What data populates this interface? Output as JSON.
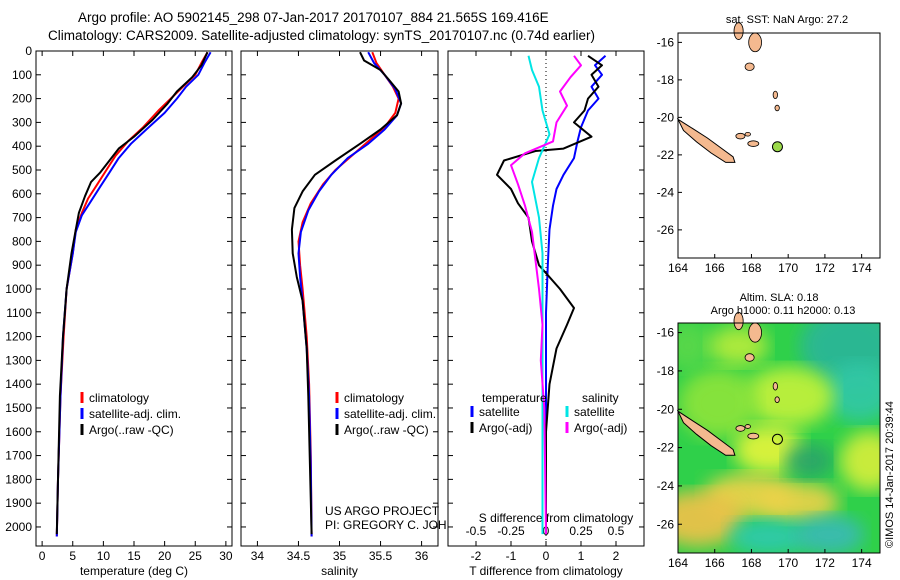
{
  "header": {
    "line1": "Argo profile: AO 5902145_298 07-Jan-2017 20170107_884 21.565S 169.416E",
    "line2": "Climatology: CARS2009. Satellite-adjusted climatology: synTS_20170107.nc (0.74d earlier)"
  },
  "credit": "©IMOS 14-Jan-2017 20:39:44",
  "colors": {
    "climatology": "#ff0000",
    "satellite": "#0000ff",
    "argo": "#000000",
    "sal_satellite": "#00e5e5",
    "sal_argo": "#ff00ff",
    "land": "#f4b98f"
  },
  "chart_data": [
    {
      "id": "temperature",
      "type": "line",
      "xlabel": "temperature (deg C)",
      "ylabel": "",
      "xlim": [
        -1,
        31
      ],
      "ylim": [
        2080,
        0
      ],
      "xticks": [
        0,
        5,
        10,
        15,
        20,
        25,
        30
      ],
      "yticks": [
        0,
        100,
        200,
        300,
        400,
        500,
        600,
        700,
        800,
        900,
        1000,
        1100,
        1200,
        1300,
        1400,
        1500,
        1600,
        1700,
        1800,
        1900,
        2000
      ],
      "legend": [
        "climatology",
        "satellite-adj. clim.",
        "Argo(..raw -QC)"
      ],
      "series": [
        {
          "name": "climatology",
          "color": "#ff0000",
          "points": [
            [
              27,
              5
            ],
            [
              26,
              50
            ],
            [
              25,
              100
            ],
            [
              23,
              150
            ],
            [
              21,
              200
            ],
            [
              19,
              250
            ],
            [
              16.5,
              320
            ],
            [
              14,
              380
            ],
            [
              12,
              440
            ],
            [
              10.5,
              500
            ],
            [
              9,
              560
            ],
            [
              7.5,
              620
            ],
            [
              6.5,
              680
            ],
            [
              5.5,
              750
            ],
            [
              5,
              850
            ],
            [
              4,
              1000
            ],
            [
              3.5,
              1200
            ],
            [
              3,
              1450
            ],
            [
              2.6,
              1800
            ],
            [
              2.4,
              2040
            ]
          ]
        },
        {
          "name": "satellite-adj. clim.",
          "color": "#0000ff",
          "points": [
            [
              27.5,
              5
            ],
            [
              26.5,
              50
            ],
            [
              25.5,
              100
            ],
            [
              23.5,
              150
            ],
            [
              22,
              200
            ],
            [
              20,
              260
            ],
            [
              17,
              330
            ],
            [
              14.5,
              390
            ],
            [
              12.5,
              450
            ],
            [
              11,
              510
            ],
            [
              9.5,
              570
            ],
            [
              8,
              630
            ],
            [
              6.5,
              690
            ],
            [
              5.5,
              760
            ],
            [
              5,
              850
            ],
            [
              4,
              1000
            ],
            [
              3.4,
              1200
            ],
            [
              3,
              1450
            ],
            [
              2.6,
              1800
            ],
            [
              2.4,
              2040
            ]
          ]
        },
        {
          "name": "Argo(..raw -QC)",
          "color": "#000000",
          "points": [
            [
              27,
              5
            ],
            [
              26,
              60
            ],
            [
              24.5,
              110
            ],
            [
              22,
              170
            ],
            [
              20.5,
              220
            ],
            [
              18,
              290
            ],
            [
              15,
              360
            ],
            [
              12.5,
              410
            ],
            [
              11,
              460
            ],
            [
              9.5,
              510
            ],
            [
              8,
              550
            ],
            [
              7,
              610
            ],
            [
              6,
              680
            ],
            [
              5.5,
              750
            ],
            [
              4.8,
              850
            ],
            [
              4,
              1000
            ],
            [
              3.4,
              1200
            ],
            [
              2.9,
              1450
            ],
            [
              2.6,
              1800
            ],
            [
              2.4,
              2030
            ]
          ]
        }
      ]
    },
    {
      "id": "salinity",
      "type": "line",
      "xlabel": "salinity",
      "ylabel": "",
      "xlim": [
        33.8,
        36.2
      ],
      "ylim": [
        2080,
        0
      ],
      "xticks": [
        34,
        34.5,
        35,
        35.5,
        36
      ],
      "legend": [
        "climatology",
        "satellite-adj. clim.",
        "Argo(..raw -QC)"
      ],
      "annotation": [
        "US ARGO PROJECT",
        "PI: GREGORY C. JOHNSON"
      ],
      "series": [
        {
          "name": "climatology",
          "color": "#ff0000",
          "points": [
            [
              35.4,
              5
            ],
            [
              35.45,
              50
            ],
            [
              35.55,
              100
            ],
            [
              35.65,
              150
            ],
            [
              35.72,
              200
            ],
            [
              35.68,
              260
            ],
            [
              35.55,
              320
            ],
            [
              35.35,
              380
            ],
            [
              35.15,
              440
            ],
            [
              34.95,
              500
            ],
            [
              34.8,
              560
            ],
            [
              34.65,
              640
            ],
            [
              34.55,
              720
            ],
            [
              34.5,
              800
            ],
            [
              34.52,
              900
            ],
            [
              34.55,
              1000
            ],
            [
              34.6,
              1200
            ],
            [
              34.63,
              1400
            ],
            [
              34.65,
              1700
            ],
            [
              34.66,
              2040
            ]
          ]
        },
        {
          "name": "satellite-adj. clim.",
          "color": "#0000ff",
          "points": [
            [
              35.35,
              5
            ],
            [
              35.42,
              50
            ],
            [
              35.55,
              100
            ],
            [
              35.68,
              160
            ],
            [
              35.75,
              220
            ],
            [
              35.7,
              270
            ],
            [
              35.55,
              330
            ],
            [
              35.35,
              390
            ],
            [
              35.1,
              450
            ],
            [
              34.9,
              520
            ],
            [
              34.75,
              590
            ],
            [
              34.62,
              670
            ],
            [
              34.53,
              760
            ],
            [
              34.5,
              850
            ],
            [
              34.52,
              950
            ],
            [
              34.55,
              1050
            ],
            [
              34.6,
              1250
            ],
            [
              34.63,
              1450
            ],
            [
              34.65,
              1750
            ],
            [
              34.66,
              2040
            ]
          ]
        },
        {
          "name": "Argo(..raw -QC)",
          "color": "#000000",
          "points": [
            [
              35.25,
              5
            ],
            [
              35.3,
              40
            ],
            [
              35.5,
              80
            ],
            [
              35.6,
              120
            ],
            [
              35.72,
              170
            ],
            [
              35.75,
              220
            ],
            [
              35.7,
              270
            ],
            [
              35.5,
              330
            ],
            [
              35.25,
              390
            ],
            [
              34.95,
              460
            ],
            [
              34.7,
              520
            ],
            [
              34.55,
              590
            ],
            [
              34.45,
              660
            ],
            [
              34.42,
              750
            ],
            [
              34.43,
              850
            ],
            [
              34.48,
              950
            ],
            [
              34.55,
              1050
            ],
            [
              34.6,
              1250
            ],
            [
              34.62,
              1450
            ],
            [
              34.64,
              1750
            ],
            [
              34.66,
              2030
            ]
          ]
        }
      ]
    },
    {
      "id": "difference",
      "type": "line",
      "xlabel": "T difference from climatology",
      "xlabel2": "S difference from climatology",
      "xlim": [
        -2.8,
        2.8
      ],
      "ylim": [
        2080,
        0
      ],
      "xticks": [
        -2,
        -1,
        0,
        1,
        2
      ],
      "xticks2": [
        "-0.5",
        "-0.25",
        "0",
        "0.25",
        "0.5"
      ],
      "legend_groups": [
        {
          "title": "temperature",
          "items": [
            "satellite",
            "Argo(-adj)"
          ]
        },
        {
          "title": "salinity",
          "items": [
            "satellite",
            "Argo(-adj)"
          ]
        }
      ],
      "series": [
        {
          "name": "temperature satellite",
          "color": "#0000ff",
          "points": [
            [
              1.7,
              20
            ],
            [
              1.4,
              60
            ],
            [
              1.6,
              100
            ],
            [
              1.3,
              150
            ],
            [
              1.5,
              200
            ],
            [
              1.2,
              250
            ],
            [
              1.0,
              320
            ],
            [
              0.9,
              380
            ],
            [
              0.8,
              450
            ],
            [
              0.5,
              520
            ],
            [
              0.3,
              580
            ],
            [
              0.2,
              650
            ],
            [
              0.1,
              750
            ],
            [
              0.05,
              900
            ],
            [
              0,
              1100
            ],
            [
              0,
              1300
            ],
            [
              0,
              1600
            ],
            [
              0,
              2030
            ]
          ]
        },
        {
          "name": "temperature Argo(-adj)",
          "color": "#000000",
          "points": [
            [
              1.2,
              20
            ],
            [
              1.6,
              60
            ],
            [
              1.3,
              100
            ],
            [
              1.5,
              150
            ],
            [
              1.2,
              200
            ],
            [
              1.1,
              250
            ],
            [
              0.8,
              300
            ],
            [
              1.3,
              360
            ],
            [
              0.5,
              410
            ],
            [
              -0.3,
              420
            ],
            [
              -1.2,
              460
            ],
            [
              -1.4,
              520
            ],
            [
              -1.0,
              580
            ],
            [
              -0.8,
              640
            ],
            [
              -0.5,
              700
            ],
            [
              -0.4,
              800
            ],
            [
              -0.2,
              900
            ],
            [
              0.4,
              1000
            ],
            [
              0.8,
              1080
            ],
            [
              0.6,
              1150
            ],
            [
              0.3,
              1250
            ],
            [
              0.1,
              1400
            ],
            [
              0,
              1600
            ],
            [
              0,
              2030
            ]
          ]
        },
        {
          "name": "salinity satellite",
          "color": "#00e5e5",
          "points": [
            [
              -0.5,
              20
            ],
            [
              -0.4,
              80
            ],
            [
              -0.2,
              150
            ],
            [
              -0.1,
              250
            ],
            [
              0.1,
              350
            ],
            [
              -0.2,
              450
            ],
            [
              -0.4,
              550
            ],
            [
              -0.2,
              700
            ],
            [
              -0.1,
              850
            ],
            [
              -0.1,
              1000
            ],
            [
              -0.1,
              1200
            ],
            [
              -0.1,
              1500
            ],
            [
              -0.1,
              2030
            ]
          ]
        },
        {
          "name": "salinity Argo(-adj)",
          "color": "#ff00ff",
          "points": [
            [
              0.8,
              20
            ],
            [
              1.0,
              60
            ],
            [
              0.7,
              110
            ],
            [
              0.4,
              170
            ],
            [
              0.6,
              230
            ],
            [
              0.3,
              300
            ],
            [
              0.2,
              380
            ],
            [
              -0.6,
              430
            ],
            [
              -1.0,
              480
            ],
            [
              -0.8,
              560
            ],
            [
              -0.6,
              650
            ],
            [
              -0.4,
              760
            ],
            [
              -0.3,
              880
            ],
            [
              -0.2,
              1000
            ],
            [
              -0.1,
              1150
            ],
            [
              -0.15,
              1300
            ],
            [
              -0.05,
              1500
            ],
            [
              0,
              2030
            ]
          ]
        }
      ]
    },
    {
      "id": "sst-map",
      "type": "map",
      "title": "sat. SST: NaN Argo: 27.2",
      "xlim": [
        164,
        175
      ],
      "ylim": [
        -27.5,
        -15.5
      ],
      "xticks": [
        164,
        166,
        168,
        170,
        172,
        174
      ],
      "yticks": [
        -16,
        -18,
        -20,
        -22,
        -24,
        -26
      ],
      "float": {
        "lon": 169.416,
        "lat": -21.565
      }
    },
    {
      "id": "sla-map",
      "type": "map",
      "title": "Altim. SLA: 0.18",
      "subtitle": "Argo h1000: 0.11 h2000: 0.13",
      "xlim": [
        164,
        175
      ],
      "ylim": [
        -27.5,
        -15.5
      ],
      "xticks": [
        164,
        166,
        168,
        170,
        172,
        174
      ],
      "yticks": [
        -16,
        -18,
        -20,
        -22,
        -24,
        -26
      ],
      "float": {
        "lon": 169.416,
        "lat": -21.565
      }
    }
  ]
}
